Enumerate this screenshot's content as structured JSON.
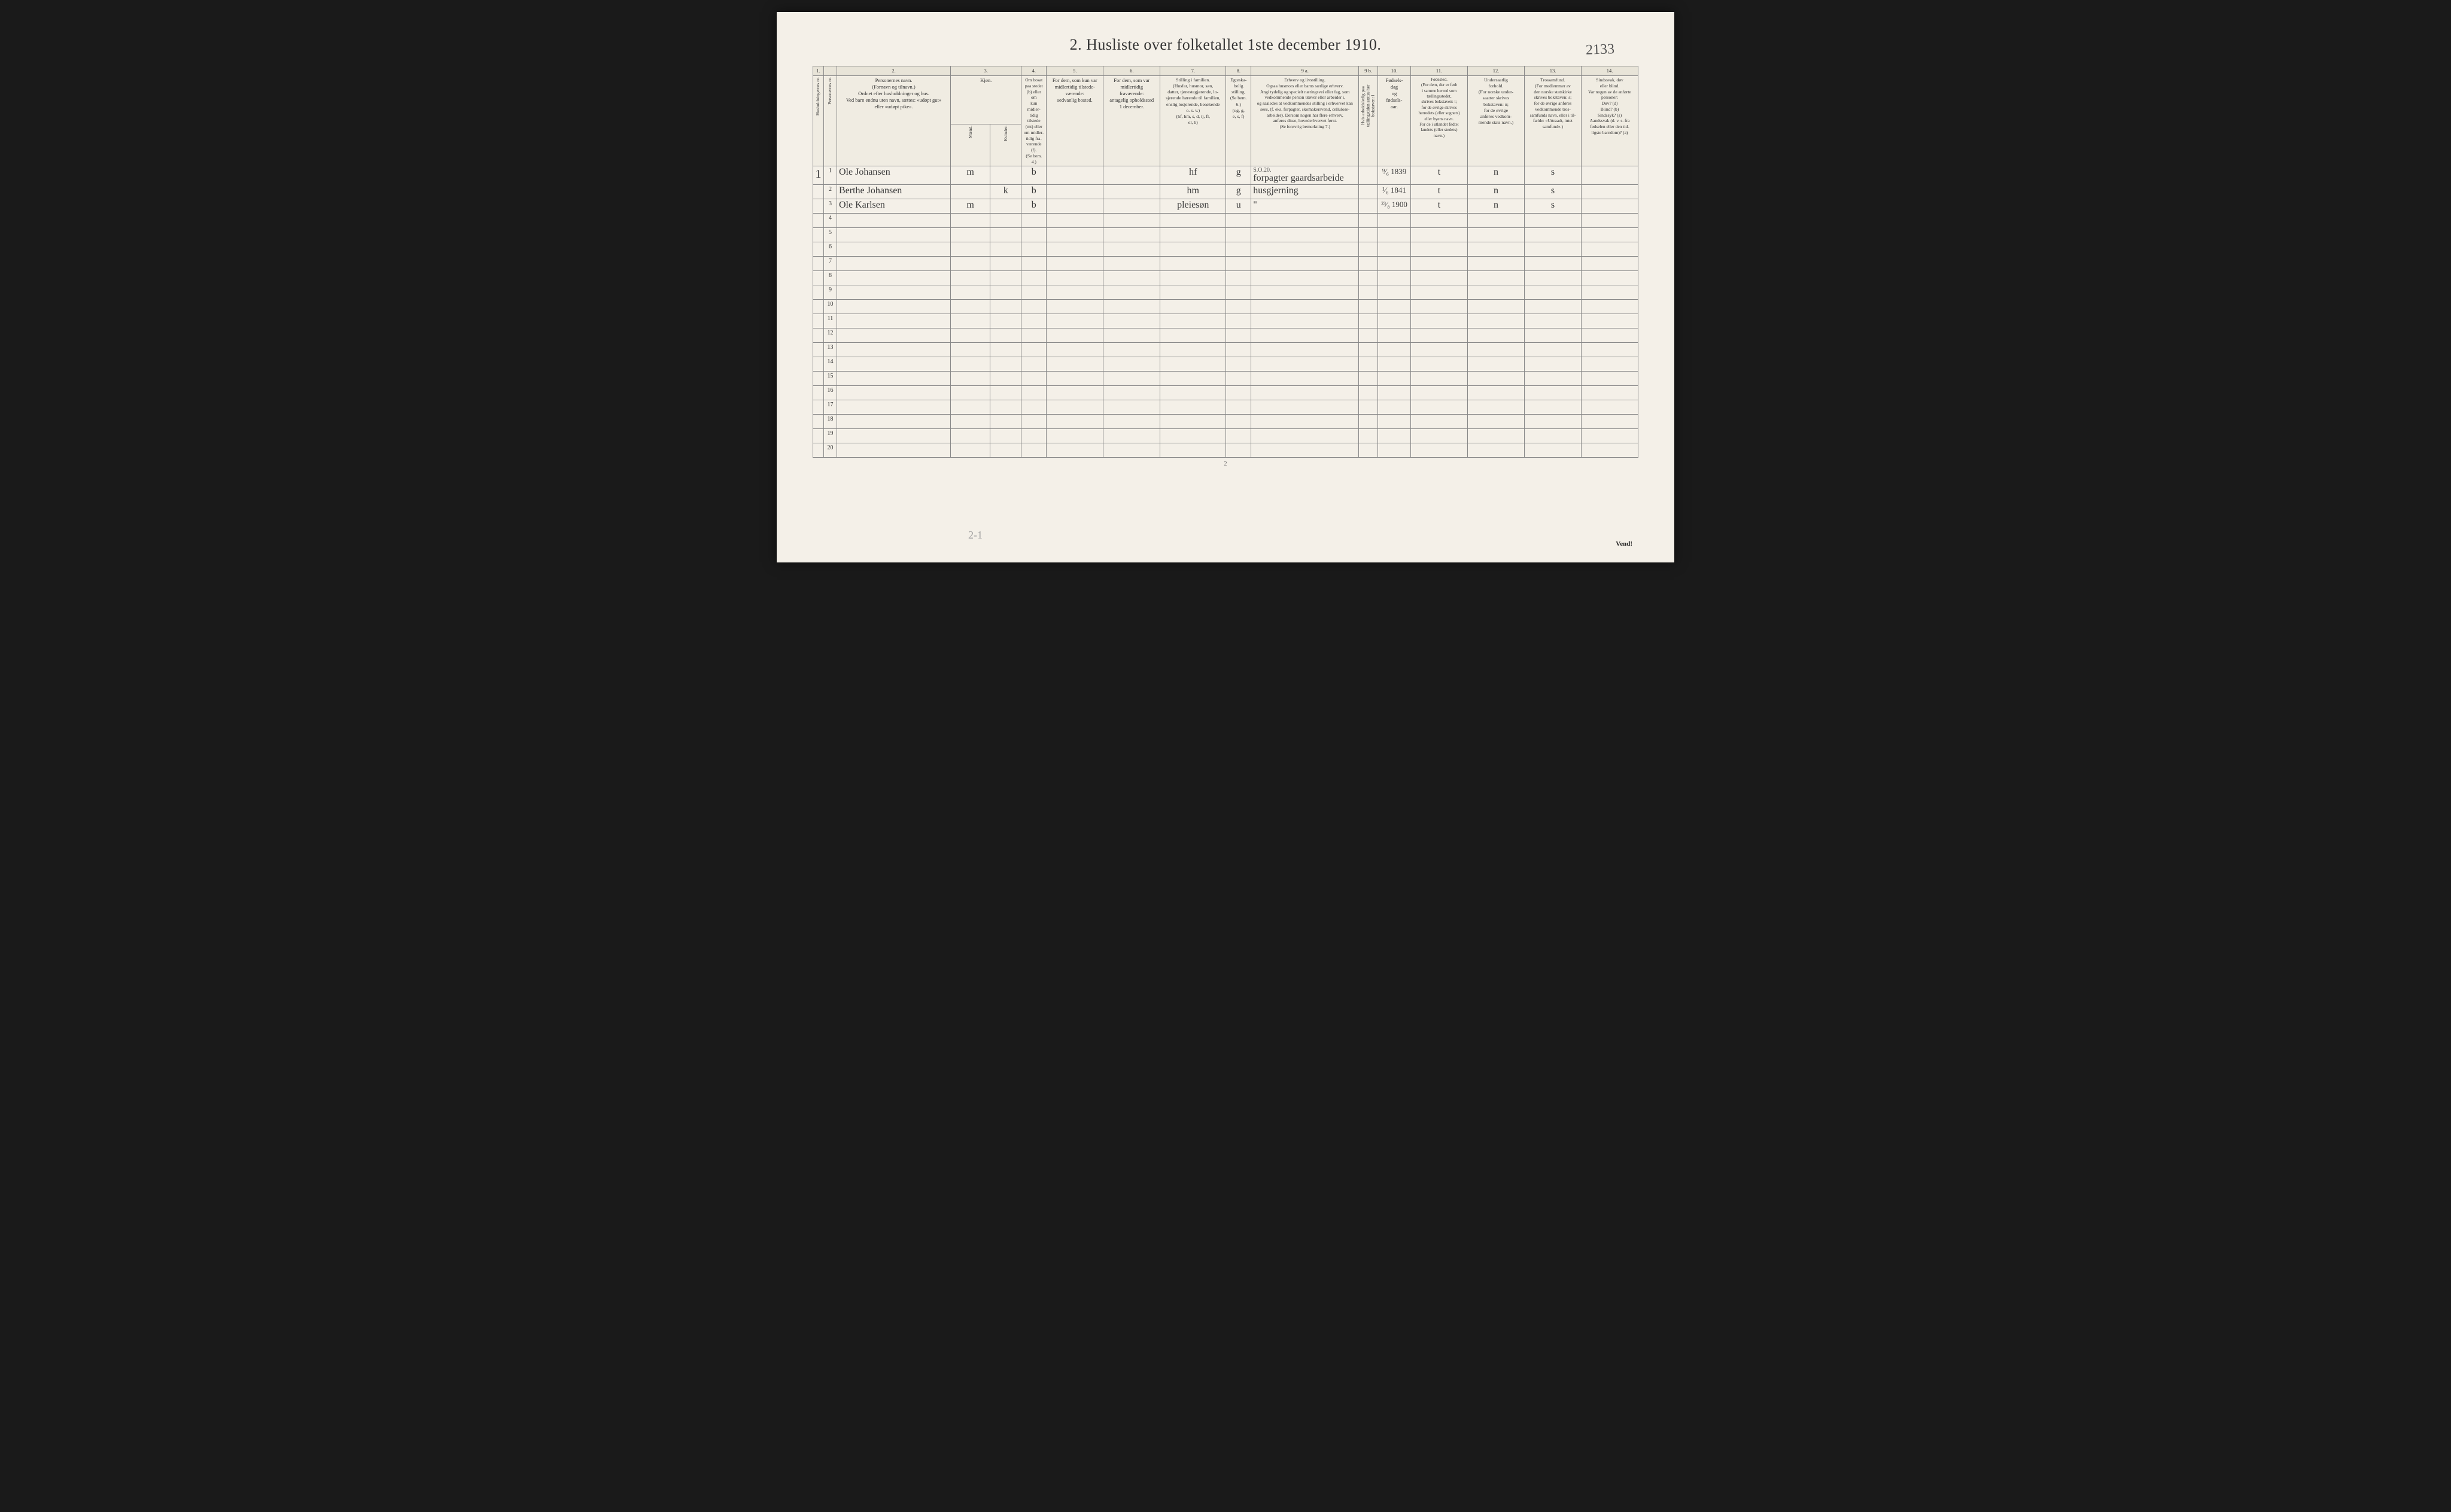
{
  "corner_note": "2133",
  "title": "2. Husliste over folketallet 1ste december 1910.",
  "col_nums": [
    "1.",
    "",
    "2.",
    "3.",
    "",
    "4.",
    "5.",
    "6.",
    "7.",
    "8.",
    "9 a.",
    "9 b.",
    "10.",
    "11.",
    "12.",
    "13.",
    "14."
  ],
  "headers": {
    "h1": "Husholdningernes nr.",
    "h1b": "Personernes nr.",
    "h2": "Personernes navn.\n(Fornavn og tilnavn.)\nOrdnet efter husholdninger og hus.\nVed barn endnu uten navn, sættes: «udøpt gut»\neller «udøpt pike».",
    "h3": "Kjøn.",
    "h3a": "Mænd.",
    "h3b": "Kvinder.",
    "h3_sub": "m. | k.",
    "h4": "Om bosat\npaa stedet\n(b) eller om\nkun midler-\ntidig tilstede\n(mt) eller\nom midler-\ntidig fra-\nværende (f).\n(Se bem. 4.)",
    "h5": "For dem, som kun var\nmidlertidig tilstede-\nværende:\nsedvanlig bosted.",
    "h6": "For dem, som var\nmidlertidig\nfraværende:\nantagelig opholdssted\n1 december.",
    "h7": "Stilling i familien.\n(Husfar, husmor, søn,\ndatter, tjenestegjørende, lo-\nsjerende hørende til familien,\nenslig losjerende, besøkende\no. s. v.)\n(hf, hm, s, d, tj, fl,\nel, b)",
    "h8": "Egteska-\nbelig\nstilling.\n(Se bem. 6.)\n(ug, g,\ne, s, f)",
    "h9a": "Erhverv og livsstilling.\nOgsaa husmors eller barns særlige erhverv.\nAngi tydelig og specielt næringsvei eller fag, som\nvedkommende person utøver eller arbeider i,\nog saaledes at vedkommendes stilling i erhvervet kan\nsees, (f. eks. forpagter, skomakersvend, cellulose-\narbeider). Dersom nogen har flere erhverv,\nanføres disse, hovederhvervet først.\n(Se forøvrig bemerkning 7.)",
    "h9b": "Hvis arbeidsledig\npaa tællingstiden sættes\nher bokstaven: l",
    "h10": "Fødsels-\ndag\nog\nfødsels-\naar.",
    "h11": "Fødested.\n(For dem, der er født\ni samme herred som\ntællingsstedet,\nskrives bokstaven: t;\nfor de øvrige skrives\nherredets (eller sognets)\neller byens navn.\nFor de i utlandet fødte:\nlandets (eller stedets)\nnavn.)",
    "h12": "Undersaatlig\nforhold.\n(For norske under-\nsaatter skrives\nbokstaven: n;\nfor de øvrige\nanføres vedkom-\nmende stats navn.)",
    "h13": "Trossamfund.\n(For medlemmer av\nden norske statskirke\nskrives bokstaven: s;\nfor de øvrige anføres\nvedkommende tros-\nsamfunds navn, eller i til-\nfælde: «Uttraadt, intet\nsamfund».)",
    "h14": "Sindssvak, døv\neller blind.\nVar nogen av de anførte\npersoner:\nDøv?      (d)\nBlind?    (b)\nSindssyk? (s)\nAandssvak (d. v. s. fra\nfødselen eller den tid-\nligste barndom)? (a)"
  },
  "rows": [
    {
      "hh": "1",
      "n": "1",
      "name": "Ole Johansen",
      "sex_m": "m",
      "sex_k": "",
      "res": "b",
      "c5": "",
      "c6": "",
      "fam": "hf",
      "mar": "g",
      "occ": "forpagter gaardsarbeide",
      "occ_sup": "S.O.20.",
      "c9b": "",
      "birth": "⁹⁄₆ 1839",
      "place": "t",
      "nat": "n",
      "rel": "s",
      "c14": ""
    },
    {
      "hh": "",
      "n": "2",
      "name": "Berthe Johansen",
      "sex_m": "",
      "sex_k": "k",
      "res": "b",
      "c5": "",
      "c6": "",
      "fam": "hm",
      "mar": "g",
      "occ": "husgjerning",
      "occ_sup": "",
      "c9b": "",
      "birth": "¹⁄₆ 1841",
      "place": "t",
      "nat": "n",
      "rel": "s",
      "c14": ""
    },
    {
      "hh": "",
      "n": "3",
      "name": "Ole Karlsen",
      "sex_m": "m",
      "sex_k": "",
      "res": "b",
      "c5": "",
      "c6": "",
      "fam": "pleiesøn",
      "mar": "u",
      "occ": "\"",
      "occ_sup": "",
      "c9b": "",
      "birth": "²³⁄₈ 1900",
      "place": "t",
      "nat": "n",
      "rel": "s",
      "c14": ""
    }
  ],
  "empty_rows": [
    "4",
    "5",
    "6",
    "7",
    "8",
    "9",
    "10",
    "11",
    "12",
    "13",
    "14",
    "15",
    "16",
    "17",
    "18",
    "19",
    "20"
  ],
  "footer_num": "2",
  "bottom_note": "2-1",
  "vend": "Vend!"
}
